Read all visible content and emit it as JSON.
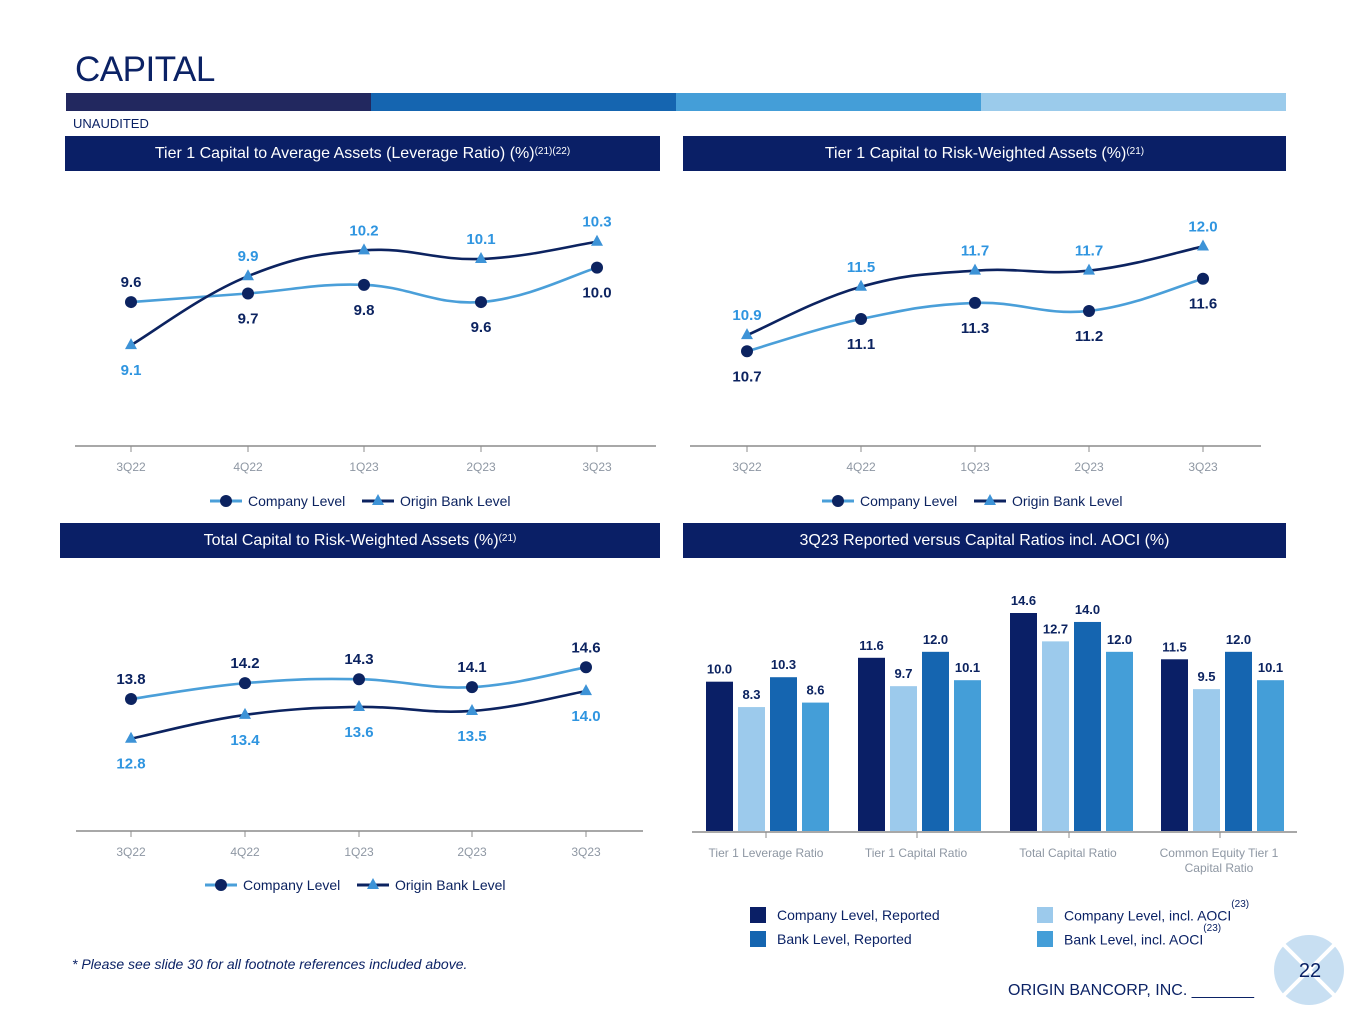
{
  "page": {
    "title": "CAPITAL",
    "unaudited": "UNAUDITED",
    "footnote": "* Please see slide 30 for all footnote references included above.",
    "brand": "ORIGIN BANCORP, INC. _______",
    "page_number": "22",
    "stripe_colors": [
      "#22285f",
      "#1565b0",
      "#449ed8",
      "#9bcbeb"
    ]
  },
  "colors": {
    "company_line": "#4a9fd9",
    "company_marker": "#0c2360",
    "bank_line": "#0c2360",
    "bank_marker": "#3d93d7",
    "bank_label": "#2f95e0",
    "company_label": "#0c2360",
    "axis": "#8c8c8c",
    "tick_label": "#8e97a3",
    "bar_company_reported": "#0a1f66",
    "bar_company_aoci": "#9ccaec",
    "bar_bank_reported": "#1565b0",
    "bar_bank_aoci": "#449ed8"
  },
  "chart_data": [
    {
      "type": "line",
      "title": "Tier 1 Capital to Average Assets (Leverage Ratio) (%)",
      "title_sup": "(21)(22)",
      "categories": [
        "3Q22",
        "4Q22",
        "1Q23",
        "2Q23",
        "3Q23"
      ],
      "series": [
        {
          "name": "Company Level",
          "values": [
            9.6,
            9.7,
            9.8,
            9.6,
            10.0
          ],
          "label_pos": [
            "above",
            "below",
            "below",
            "below",
            "below"
          ]
        },
        {
          "name": "Origin Bank Level",
          "values": [
            9.1,
            9.9,
            10.2,
            10.1,
            10.3
          ],
          "label_pos": [
            "below",
            "above",
            "above",
            "above",
            "above"
          ]
        }
      ],
      "ylim": [
        8.0,
        10.9
      ],
      "legend": "bottom",
      "grid": false
    },
    {
      "type": "line",
      "title": "Tier 1 Capital to Risk-Weighted Assets (%)",
      "title_sup": "(21)",
      "categories": [
        "3Q22",
        "4Q22",
        "1Q23",
        "2Q23",
        "3Q23"
      ],
      "series": [
        {
          "name": "Company Level",
          "values": [
            10.7,
            11.1,
            11.3,
            11.2,
            11.6
          ],
          "label_pos": [
            "below",
            "below",
            "below",
            "below",
            "below"
          ]
        },
        {
          "name": "Origin Bank Level",
          "values": [
            10.9,
            11.5,
            11.7,
            11.7,
            12.0
          ],
          "label_pos": [
            "above",
            "above",
            "above",
            "above",
            "above"
          ]
        }
      ],
      "ylim": [
        9.6,
        12.7
      ],
      "legend": "bottom",
      "grid": false
    },
    {
      "type": "line",
      "title": "Total Capital to Risk-Weighted Assets (%)",
      "title_sup": "(21)",
      "categories": [
        "3Q22",
        "4Q22",
        "1Q23",
        "2Q23",
        "3Q23"
      ],
      "series": [
        {
          "name": "Company Level",
          "values": [
            13.8,
            14.2,
            14.3,
            14.1,
            14.6
          ],
          "label_pos": [
            "above",
            "above",
            "above",
            "above",
            "above"
          ]
        },
        {
          "name": "Origin Bank Level",
          "values": [
            12.8,
            13.4,
            13.6,
            13.5,
            14.0
          ],
          "label_pos": [
            "below",
            "below",
            "below",
            "below",
            "below"
          ]
        }
      ],
      "ylim": [
        10.5,
        16.8
      ],
      "legend": "bottom",
      "grid": false
    },
    {
      "type": "bar",
      "title": "3Q23 Reported versus Capital Ratios incl. AOCI (%)",
      "categories": [
        "Tier 1 Leverage Ratio",
        "Tier 1 Capital Ratio",
        "Total Capital Ratio",
        "Common Equity Tier 1 Capital Ratio"
      ],
      "series": [
        {
          "name": "Company Level, Reported",
          "sup": "",
          "values": [
            10.0,
            11.6,
            14.6,
            11.5
          ]
        },
        {
          "name": "Company Level, incl. AOCI",
          "sup": "(23)",
          "values": [
            8.3,
            9.7,
            12.7,
            9.5
          ]
        },
        {
          "name": "Bank Level, Reported",
          "sup": "",
          "values": [
            10.3,
            12.0,
            14.0,
            12.0
          ]
        },
        {
          "name": "Bank Level, incl. AOCI",
          "sup": "(23)",
          "values": [
            8.6,
            10.1,
            12.0,
            10.1
          ]
        }
      ],
      "ylim": [
        0,
        14.6
      ],
      "legend": "bottom",
      "grid": false
    }
  ]
}
